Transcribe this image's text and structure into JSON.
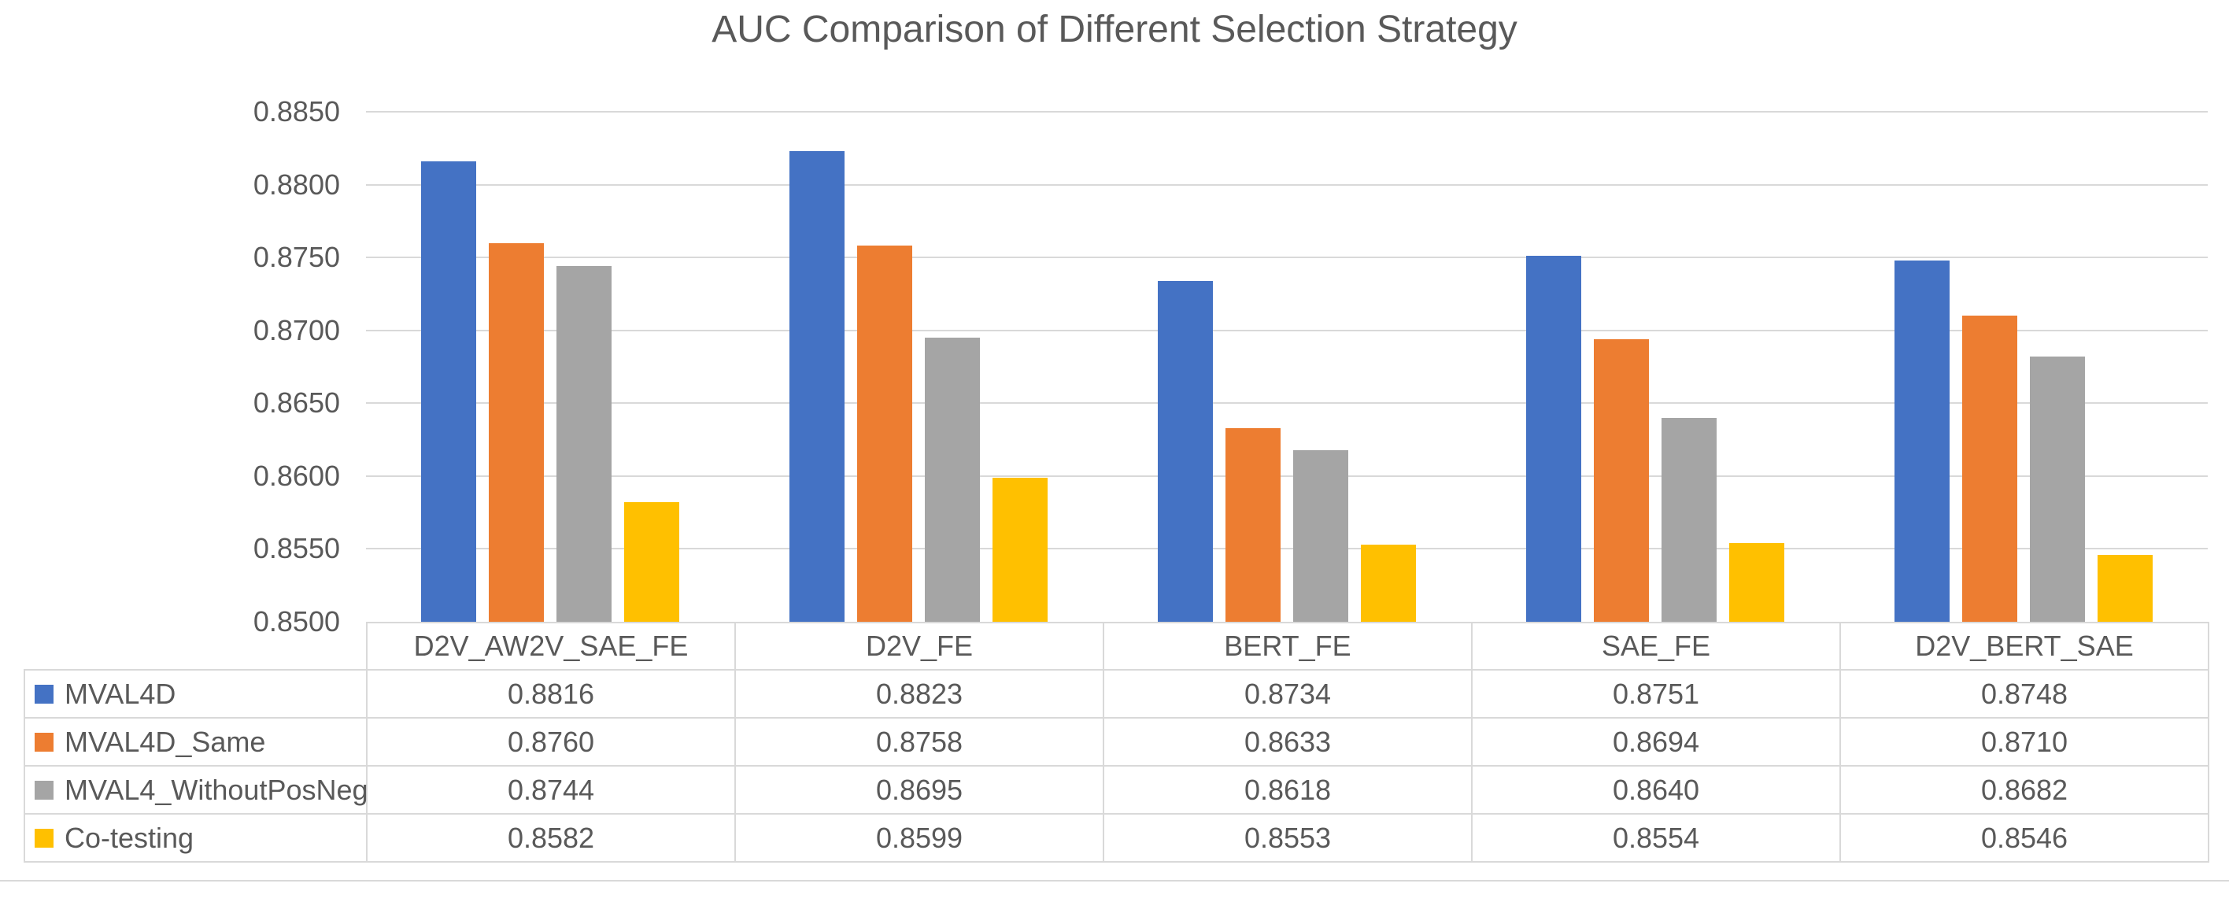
{
  "title": "AUC Comparison of Different Selection Strategy",
  "colors": {
    "background": "#FFFFFF",
    "text": "#595959",
    "gridline": "#D9D9D9",
    "table_border": "#D9D9D9",
    "series_blue": "#4472C4",
    "series_orange": "#ED7D31",
    "series_gray": "#A5A5A5",
    "series_yellow": "#FFC000"
  },
  "chart_data": {
    "type": "bar",
    "title": "AUC Comparison of Different Selection Strategy",
    "xlabel": "",
    "ylabel": "",
    "ylim": [
      0.85,
      0.885
    ],
    "grid": true,
    "legend_position": "data-table-left-column",
    "categories": [
      "D2V_AW2V_SAE_FE",
      "D2V_FE",
      "BERT_FE",
      "SAE_FE",
      "D2V_BERT_SAE"
    ],
    "yticks": [
      {
        "value": 0.885,
        "label": "0.8850"
      },
      {
        "value": 0.88,
        "label": "0.8800"
      },
      {
        "value": 0.875,
        "label": "0.8750"
      },
      {
        "value": 0.87,
        "label": "0.8700"
      },
      {
        "value": 0.865,
        "label": "0.8650"
      },
      {
        "value": 0.86,
        "label": "0.8600"
      },
      {
        "value": 0.855,
        "label": "0.8550"
      },
      {
        "value": 0.85,
        "label": "0.8500"
      }
    ],
    "series": [
      {
        "name": "MVAL4D",
        "color": "#4472C4",
        "values": [
          0.8816,
          0.8823,
          0.8734,
          0.8751,
          0.8748
        ],
        "display": [
          "0.8816",
          "0.8823",
          "0.8734",
          "0.8751",
          "0.8748"
        ]
      },
      {
        "name": "MVAL4D_Same",
        "color": "#ED7D31",
        "values": [
          0.876,
          0.8758,
          0.8633,
          0.8694,
          0.871
        ],
        "display": [
          "0.8760",
          "0.8758",
          "0.8633",
          "0.8694",
          "0.8710"
        ]
      },
      {
        "name": "MVAL4_WithoutPosNeg",
        "color": "#A5A5A5",
        "values": [
          0.8744,
          0.8695,
          0.8618,
          0.864,
          0.8682
        ],
        "display": [
          "0.8744",
          "0.8695",
          "0.8618",
          "0.8640",
          "0.8682"
        ]
      },
      {
        "name": "Co-testing",
        "color": "#FFC000",
        "values": [
          0.8582,
          0.8599,
          0.8553,
          0.8554,
          0.8546
        ],
        "display": [
          "0.8582",
          "0.8599",
          "0.8553",
          "0.8554",
          "0.8546"
        ]
      }
    ]
  }
}
